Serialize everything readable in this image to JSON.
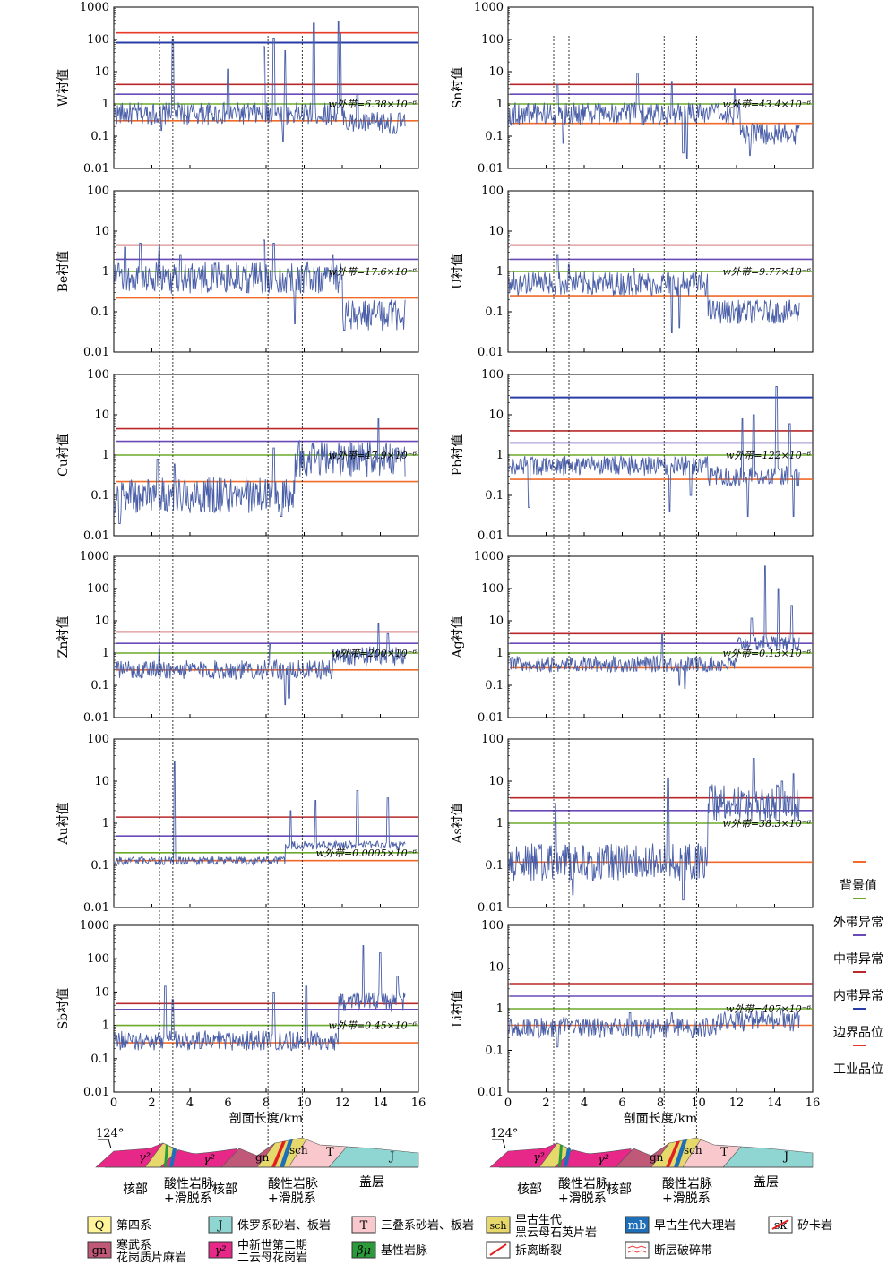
{
  "colors": {
    "background_line": "#f06a2a",
    "outer_line": "#6aaa28",
    "middle_line": "#6a4ab8",
    "inner_line": "#b8282a",
    "boundary_line": "#283ca8",
    "industrial_line": "#e83a28",
    "series_line": "#4a5fa8"
  },
  "legend": {
    "items": [
      {
        "label": "背景值",
        "color": "#f06a2a"
      },
      {
        "label": "外带异常",
        "color": "#6aaa28"
      },
      {
        "label": "中带异常",
        "color": "#6a4ab8"
      },
      {
        "label": "内带异常",
        "color": "#b8282a"
      },
      {
        "label": "边界品位",
        "color": "#283ca8"
      },
      {
        "label": "工业品位",
        "color": "#e83a28"
      }
    ]
  },
  "xaxis": {
    "label": "剖面长度/km",
    "ticks": [
      "0",
      "2",
      "4",
      "6",
      "8",
      "10",
      "12",
      "14",
      "16"
    ],
    "range": [
      0,
      16
    ]
  },
  "dashed_lines_km": {
    "left": [
      2.4,
      3.1,
      8.1,
      9.9
    ],
    "right": [
      2.4,
      3.2,
      8.2,
      9.9
    ]
  },
  "chart_data": [
    {
      "type": "line",
      "element": "W",
      "ylabel": "W衬值",
      "annotation": "w外带=6.38×10⁻⁶",
      "ylim": [
        0.01,
        1000
      ],
      "yticks": [
        "0.01",
        "0.1",
        "1",
        "10",
        "100",
        "1000"
      ],
      "thresholds": {
        "background": 0.3,
        "outer": 1,
        "middle": 2,
        "inner": 4,
        "boundary": 80,
        "industrial": 160
      },
      "baseline": 0.5,
      "noise": 0.35,
      "peaks": [
        [
          3.1,
          100
        ],
        [
          6.0,
          12
        ],
        [
          7.9,
          60
        ],
        [
          8.4,
          110
        ],
        [
          9.0,
          45
        ],
        [
          10.5,
          320
        ],
        [
          11.8,
          350
        ],
        [
          11.9,
          150
        ],
        [
          12.8,
          2
        ]
      ],
      "lows": [
        [
          2.5,
          0.15
        ],
        [
          8.9,
          0.07
        ],
        [
          14.8,
          0.12
        ]
      ],
      "tail_level": 0.25,
      "tail_start": 12.2
    },
    {
      "type": "line",
      "element": "Sn",
      "ylabel": "Sn衬值",
      "annotation": "w外带=43.4×10⁻⁶",
      "ylim": [
        0.01,
        1000
      ],
      "yticks": [
        "0.01",
        "0.1",
        "1",
        "10",
        "100",
        "1000"
      ],
      "thresholds": {
        "background": 0.25,
        "outer": 1,
        "middle": 2,
        "inner": 4
      },
      "baseline": 0.5,
      "noise": 0.35,
      "peaks": [
        [
          2.6,
          4
        ],
        [
          6.8,
          9
        ],
        [
          8.6,
          5
        ],
        [
          11.9,
          3
        ]
      ],
      "lows": [
        [
          2.9,
          0.06
        ],
        [
          9.2,
          0.03
        ],
        [
          9.4,
          0.02
        ],
        [
          12.7,
          0.025
        ]
      ],
      "tail_level": 0.12,
      "tail_start": 12.2
    },
    {
      "type": "line",
      "element": "Be",
      "ylabel": "Be衬值",
      "annotation": "w外带=17.6×10⁻⁶",
      "ylim": [
        0.01,
        100
      ],
      "yticks": [
        "0.01",
        "0.1",
        "1",
        "10",
        "100"
      ],
      "thresholds": {
        "background": 0.22,
        "outer": 1,
        "middle": 2,
        "inner": 4.5
      },
      "baseline": 0.7,
      "noise": 0.4,
      "peaks": [
        [
          0.6,
          4
        ],
        [
          1.4,
          5
        ],
        [
          2.4,
          4.5
        ],
        [
          3.5,
          2.5
        ],
        [
          7.9,
          6
        ],
        [
          8.4,
          5
        ],
        [
          11.5,
          2.5
        ]
      ],
      "lows": [
        [
          9.5,
          0.05
        ],
        [
          12.1,
          0.035
        ]
      ],
      "tail_level": 0.08,
      "tail_start": 12.0
    },
    {
      "type": "line",
      "element": "U",
      "ylabel": "U衬值",
      "annotation": "w外带=9.77×10⁻⁶",
      "ylim": [
        0.01,
        100
      ],
      "yticks": [
        "0.01",
        "0.1",
        "1",
        "10",
        "100"
      ],
      "thresholds": {
        "background": 0.25,
        "outer": 1,
        "middle": 2,
        "inner": 4.5
      },
      "baseline": 0.5,
      "noise": 0.3,
      "peaks": [
        [
          2.6,
          2.5
        ],
        [
          3.2,
          1.5
        ],
        [
          6.6,
          1.2
        ]
      ],
      "lows": [
        [
          8.6,
          0.03
        ],
        [
          9.0,
          0.04
        ]
      ],
      "tail_level": 0.1,
      "tail_start": 10.5
    },
    {
      "type": "line",
      "element": "Cu",
      "ylabel": "Cu衬值",
      "annotation": "w外带=47.9×10⁻⁶",
      "ylim": [
        0.01,
        100
      ],
      "yticks": [
        "0.01",
        "0.1",
        "1",
        "10",
        "100"
      ],
      "thresholds": {
        "background": 0.22,
        "outer": 1,
        "middle": 2.2,
        "inner": 4.5
      },
      "baseline": 0.1,
      "noise": 0.45,
      "peaks": [
        [
          2.3,
          0.8
        ],
        [
          3.2,
          0.6
        ],
        [
          8.4,
          1.5
        ],
        [
          13.9,
          8
        ],
        [
          14.9,
          1.5
        ]
      ],
      "lows": [
        [
          0.3,
          0.02
        ],
        [
          8.8,
          0.03
        ]
      ],
      "tail_level": 0.8,
      "tail_start": 9.5
    },
    {
      "type": "line",
      "element": "Pb",
      "ylabel": "Pb衬值",
      "annotation": "w外带=122×10⁻⁶",
      "ylim": [
        0.01,
        100
      ],
      "yticks": [
        "0.01",
        "0.1",
        "1",
        "10",
        "100"
      ],
      "thresholds": {
        "background": 0.25,
        "outer": 1,
        "middle": 2,
        "inner": 4,
        "boundary": 27
      },
      "baseline": 0.55,
      "noise": 0.25,
      "peaks": [
        [
          12.3,
          8
        ],
        [
          12.9,
          10
        ],
        [
          14.1,
          50
        ],
        [
          14.8,
          6
        ]
      ],
      "lows": [
        [
          1.1,
          0.05
        ],
        [
          8.5,
          0.04
        ],
        [
          9.6,
          0.1
        ],
        [
          12.6,
          0.03
        ],
        [
          15.0,
          0.03
        ]
      ],
      "tail_level": 0.3,
      "tail_start": 10.5
    },
    {
      "type": "line",
      "element": "Zn",
      "ylabel": "Zn衬值",
      "annotation": "w外带=200×10⁻⁶",
      "ylim": [
        0.01,
        1000
      ],
      "yticks": [
        "0.01",
        "0.1",
        "1",
        "10",
        "100",
        "1000"
      ],
      "thresholds": {
        "background": 0.3,
        "outer": 1,
        "middle": 2,
        "inner": 4.5
      },
      "baseline": 0.3,
      "noise": 0.3,
      "peaks": [
        [
          2.4,
          1.5
        ],
        [
          8.2,
          2
        ],
        [
          13.9,
          8
        ],
        [
          14.4,
          4
        ]
      ],
      "lows": [
        [
          9.0,
          0.025
        ],
        [
          9.2,
          0.04
        ]
      ],
      "tail_level": 0.8,
      "tail_start": 11.5
    },
    {
      "type": "line",
      "element": "Ag",
      "ylabel": "Ag衬值",
      "annotation": "w外带=0.13×10⁻⁶",
      "ylim": [
        0.01,
        1000
      ],
      "yticks": [
        "0.01",
        "0.1",
        "1",
        "10",
        "100",
        "1000"
      ],
      "thresholds": {
        "background": 0.35,
        "outer": 1,
        "middle": 2,
        "inner": 4
      },
      "baseline": 0.45,
      "noise": 0.25,
      "peaks": [
        [
          8.1,
          4
        ],
        [
          12.8,
          12
        ],
        [
          13.5,
          500
        ],
        [
          14.2,
          100
        ],
        [
          14.9,
          30
        ]
      ],
      "lows": [
        [
          9.0,
          0.1
        ],
        [
          9.3,
          0.08
        ]
      ],
      "tail_level": 2,
      "tail_start": 12.0
    },
    {
      "type": "line",
      "element": "Au",
      "ylabel": "Au衬值",
      "annotation": "w外带=0.0005×10⁻⁶",
      "ylim": [
        0.01,
        100
      ],
      "yticks": [
        "0.01",
        "0.1",
        "1",
        "10",
        "100"
      ],
      "thresholds": {
        "background": 0.13,
        "outer": 0.2,
        "middle": 0.5,
        "inner": 1.4
      },
      "baseline": 0.13,
      "noise": 0.1,
      "peaks": [
        [
          3.2,
          30
        ],
        [
          9.3,
          2
        ],
        [
          10.6,
          3.5
        ],
        [
          12.8,
          6
        ],
        [
          14.4,
          4
        ]
      ],
      "lows": [],
      "tail_level": 0.3,
      "tail_start": 9.0
    },
    {
      "type": "line",
      "element": "As",
      "ylabel": "As衬值",
      "annotation": "w外带=38.3×10⁻⁶",
      "ylim": [
        0.01,
        100
      ],
      "yticks": [
        "0.01",
        "0.1",
        "1",
        "10",
        "100"
      ],
      "thresholds": {
        "background": 0.12,
        "outer": 1,
        "middle": 2,
        "inner": 4
      },
      "baseline": 0.12,
      "noise": 0.45,
      "peaks": [
        [
          2.5,
          3
        ],
        [
          8.4,
          12
        ],
        [
          12.9,
          35
        ],
        [
          14.4,
          10
        ],
        [
          15.0,
          15
        ]
      ],
      "lows": [
        [
          3.4,
          0.02
        ],
        [
          9.2,
          0.015
        ]
      ],
      "tail_level": 3,
      "tail_start": 10.5
    },
    {
      "type": "line",
      "element": "Sb",
      "ylabel": "Sb衬值",
      "annotation": "w外带=0.45×10⁻⁶",
      "ylim": [
        0.01,
        1000
      ],
      "yticks": [
        "0.01",
        "0.1",
        "1",
        "10",
        "100",
        "1000"
      ],
      "thresholds": {
        "background": 0.3,
        "outer": 1,
        "middle": 3,
        "inner": 4.5
      },
      "baseline": 0.35,
      "noise": 0.3,
      "peaks": [
        [
          2.7,
          15
        ],
        [
          3.1,
          6
        ],
        [
          8.4,
          10
        ],
        [
          10.1,
          15
        ],
        [
          13.1,
          250
        ],
        [
          14.0,
          150
        ],
        [
          14.9,
          30
        ]
      ],
      "lows": [],
      "tail_level": 5,
      "tail_start": 11.8
    },
    {
      "type": "line",
      "element": "Li",
      "ylabel": "Li衬值",
      "annotation": "w外带=407×10⁻⁶",
      "ylim": [
        0.01,
        100
      ],
      "yticks": [
        "0.01",
        "0.1",
        "1",
        "10",
        "100"
      ],
      "thresholds": {
        "background": 0.4,
        "outer": 1,
        "middle": 2,
        "inner": 4
      },
      "baseline": 0.35,
      "noise": 0.25,
      "peaks": [
        [
          6.4,
          0.8
        ],
        [
          8.6,
          0.8
        ],
        [
          14.4,
          1
        ]
      ],
      "lows": [
        [
          2.6,
          0.12
        ]
      ],
      "tail_level": 0.5,
      "tail_start": 11.0
    }
  ],
  "section_labels": {
    "lon": "124°",
    "core": "核部",
    "vein": "酸性岩脉",
    "vein2": "+滑脱系",
    "cover": "盖层",
    "gamma": "γ²",
    "gn": "gn",
    "sch": "sch",
    "T": "T",
    "J": "J"
  },
  "geo_legend": {
    "items": [
      {
        "code": "Q",
        "line1": "第四系",
        "line2": "",
        "color": "#fff49a"
      },
      {
        "code": "J",
        "line1": "侏罗系砂岩、板岩",
        "line2": "",
        "color": "#8fd6d2"
      },
      {
        "code": "T",
        "line1": "三叠系砂岩、板岩",
        "line2": "",
        "color": "#f8c8cc"
      },
      {
        "code": "sch",
        "line1": "早古生代",
        "line2": "黑云母石英片岩",
        "color": "#e6d86a"
      },
      {
        "code": "mb",
        "line1": "早古生代大理岩",
        "line2": "",
        "color": "#1f6fb8"
      },
      {
        "code": "sk",
        "line1": "矽卡岩",
        "line2": "",
        "color": "#ffffff"
      },
      {
        "code": "gn",
        "line1": "寒武系",
        "line2": "花岗质片麻岩",
        "color": "#c05878"
      },
      {
        "code": "γ²",
        "line1": "中新世第二期",
        "line2": "二云母花岗岩",
        "color": "#e82888"
      },
      {
        "code": "βμ",
        "line1": "基性岩脉",
        "line2": "",
        "color": "#2a9a3a"
      },
      {
        "code": "",
        "line1": "拆离断裂",
        "line2": "",
        "color": "#e02020"
      },
      {
        "code": "",
        "line1": "断层破碎带",
        "line2": "",
        "color": "#e84040"
      }
    ]
  }
}
